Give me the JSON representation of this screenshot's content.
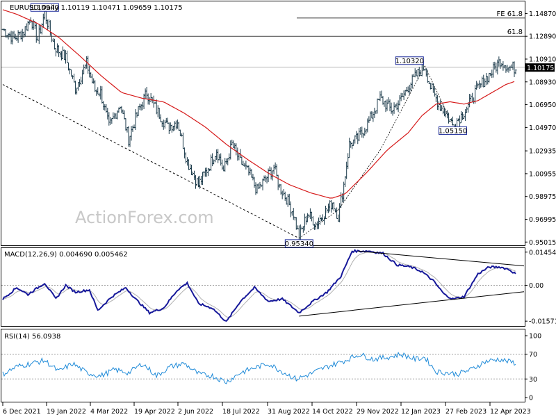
{
  "chart_data": [
    {
      "type": "candlestick",
      "title": "EURUSD,Daily  1.10119 1.10471 1.09659 1.10175",
      "ylim": [
        0.9485,
        1.158
      ],
      "y_ticks": [
        "1.14870",
        "1.12890",
        "1.10910",
        "1.08930",
        "1.06950",
        "1.04970",
        "1.02935",
        "1.00955",
        "0.98975",
        "0.96995",
        "0.95015"
      ],
      "y_tick_values": [
        1.1487,
        1.1289,
        1.1091,
        1.0893,
        1.0695,
        1.0497,
        1.02935,
        1.00955,
        0.98975,
        0.96995,
        0.95015
      ],
      "x_ticks": [
        "6 Dec 2021",
        "19 Jan 2022",
        "4 Mar 2022",
        "19 Apr 2022",
        "2 Jun 2022",
        "18 Jul 2022",
        "31 Aug 2022",
        "14 Oct 2022",
        "29 Nov 2022",
        "12 Jan 2023",
        "27 Feb 2023",
        "12 Apr 2023"
      ],
      "current_price": "1.10175",
      "price_anchors": [
        [
          0,
          1.135
        ],
        [
          8,
          1.127
        ],
        [
          15,
          1.133
        ],
        [
          20,
          1.145
        ],
        [
          25,
          1.126
        ],
        [
          30,
          1.149
        ],
        [
          37,
          1.12
        ],
        [
          45,
          1.11
        ],
        [
          52,
          1.084
        ],
        [
          60,
          1.105
        ],
        [
          66,
          1.082
        ],
        [
          70,
          1.08
        ],
        [
          76,
          1.05
        ],
        [
          84,
          1.07
        ],
        [
          90,
          1.04
        ],
        [
          97,
          1.064
        ],
        [
          103,
          1.08
        ],
        [
          110,
          1.065
        ],
        [
          118,
          1.05
        ],
        [
          125,
          1.055
        ],
        [
          132,
          1.02
        ],
        [
          140,
          1.0
        ],
        [
          147,
          1.015
        ],
        [
          153,
          1.03
        ],
        [
          158,
          1.012
        ],
        [
          164,
          1.035
        ],
        [
          170,
          1.02
        ],
        [
          176,
          1.01
        ],
        [
          182,
          0.995
        ],
        [
          188,
          1.005
        ],
        [
          194,
          1.015
        ],
        [
          198,
          0.998
        ],
        [
          203,
          0.988
        ],
        [
          208,
          0.975
        ],
        [
          212,
          0.954
        ],
        [
          218,
          0.975
        ],
        [
          224,
          0.966
        ],
        [
          230,
          0.975
        ],
        [
          236,
          0.985
        ],
        [
          240,
          0.972
        ],
        [
          244,
          1.0
        ],
        [
          248,
          1.035
        ],
        [
          254,
          1.04
        ],
        [
          262,
          1.055
        ],
        [
          270,
          1.075
        ],
        [
          278,
          1.065
        ],
        [
          284,
          1.072
        ],
        [
          290,
          1.085
        ],
        [
          296,
          1.095
        ],
        [
          302,
          1.103
        ],
        [
          306,
          1.085
        ],
        [
          312,
          1.07
        ],
        [
          318,
          1.06
        ],
        [
          322,
          1.052
        ],
        [
          328,
          1.06
        ],
        [
          333,
          1.068
        ],
        [
          338,
          1.08
        ],
        [
          344,
          1.09
        ],
        [
          350,
          1.098
        ],
        [
          356,
          1.108
        ],
        [
          362,
          1.102
        ],
        [
          367,
          1.101
        ]
      ],
      "moving_average": [
        [
          0,
          1.152
        ],
        [
          10,
          1.148
        ],
        [
          25,
          1.14
        ],
        [
          40,
          1.128
        ],
        [
          55,
          1.112
        ],
        [
          70,
          1.095
        ],
        [
          85,
          1.08
        ],
        [
          100,
          1.075
        ],
        [
          115,
          1.072
        ],
        [
          130,
          1.062
        ],
        [
          145,
          1.05
        ],
        [
          160,
          1.035
        ],
        [
          175,
          1.022
        ],
        [
          190,
          1.01
        ],
        [
          205,
          1.0
        ],
        [
          220,
          0.993
        ],
        [
          235,
          0.988
        ],
        [
          245,
          0.992
        ],
        [
          260,
          1.01
        ],
        [
          275,
          1.03
        ],
        [
          290,
          1.045
        ],
        [
          300,
          1.06
        ],
        [
          310,
          1.07
        ],
        [
          320,
          1.072
        ],
        [
          330,
          1.07
        ],
        [
          340,
          1.073
        ],
        [
          350,
          1.08
        ],
        [
          360,
          1.087
        ],
        [
          367,
          1.09
        ]
      ],
      "trend_line": [
        [
          0,
          1.087
        ],
        [
          212,
          0.9534
        ]
      ],
      "swing_line": [
        [
          212,
          0.9534
        ],
        [
          240,
          0.978
        ],
        [
          270,
          1.03
        ],
        [
          302,
          1.1032
        ],
        [
          322,
          1.0515
        ]
      ],
      "horizontal_levels": [
        {
          "label": "61.8",
          "value": 1.1289
        },
        {
          "label": "",
          "value": 1.102
        },
        {
          "label": "FE 61.8",
          "value": 1.1448
        }
      ],
      "annotations": [
        {
          "text": "1.14940",
          "x": 30,
          "y": 1.1494,
          "anchor": "top"
        },
        {
          "text": "0.95340",
          "x": 212,
          "y": 0.9534,
          "anchor": "bottom"
        },
        {
          "text": "1.10320",
          "x": 302,
          "y": 1.1032,
          "anchor": "top"
        },
        {
          "text": "1.05150",
          "x": 322,
          "y": 1.0515,
          "anchor": "bottom"
        }
      ],
      "watermark": "ActionForex.com"
    },
    {
      "type": "line",
      "title": "MACD(12,26,9) 0.004690 0.005462",
      "ylim": [
        -0.0175,
        0.016
      ],
      "y_ticks": [
        "0.014549",
        "0.00",
        "-0.015712"
      ],
      "y_tick_values": [
        0.014549,
        0.0,
        -0.015712
      ],
      "macd_anchors": [
        [
          0,
          -0.006
        ],
        [
          10,
          -0.001
        ],
        [
          18,
          -0.004
        ],
        [
          30,
          0.001
        ],
        [
          38,
          -0.006
        ],
        [
          45,
          0.0
        ],
        [
          52,
          -0.003
        ],
        [
          62,
          -0.002
        ],
        [
          68,
          -0.011
        ],
        [
          78,
          -0.005
        ],
        [
          88,
          -0.001
        ],
        [
          95,
          -0.006
        ],
        [
          105,
          -0.012
        ],
        [
          115,
          -0.01
        ],
        [
          125,
          -0.002
        ],
        [
          132,
          0.001
        ],
        [
          140,
          -0.008
        ],
        [
          150,
          -0.01
        ],
        [
          160,
          -0.016
        ],
        [
          170,
          -0.007
        ],
        [
          180,
          -0.001
        ],
        [
          190,
          -0.007
        ],
        [
          200,
          -0.006
        ],
        [
          212,
          -0.012
        ],
        [
          222,
          -0.007
        ],
        [
          232,
          -0.003
        ],
        [
          242,
          0.004
        ],
        [
          250,
          0.015
        ],
        [
          262,
          0.015
        ],
        [
          272,
          0.014
        ],
        [
          282,
          0.009
        ],
        [
          292,
          0.008
        ],
        [
          300,
          0.006
        ],
        [
          308,
          0.002
        ],
        [
          316,
          -0.004
        ],
        [
          322,
          -0.006
        ],
        [
          330,
          -0.005
        ],
        [
          340,
          0.005
        ],
        [
          348,
          0.008
        ],
        [
          356,
          0.008
        ],
        [
          362,
          0.007
        ],
        [
          367,
          0.005
        ]
      ],
      "trend_line_upper": [
        [
          254,
          0.015
        ],
        [
          395,
          0.0085
        ]
      ],
      "trend_line_lower": [
        [
          212,
          -0.0135
        ],
        [
          395,
          -0.0028
        ]
      ]
    },
    {
      "type": "line",
      "title": "RSI(14) 56.0938",
      "ylim": [
        0,
        100
      ],
      "y_ticks": [
        "100",
        "70",
        "30",
        "0"
      ],
      "y_tick_values": [
        100,
        70,
        30,
        0
      ],
      "rsi_anchors": [
        [
          0,
          38
        ],
        [
          10,
          50
        ],
        [
          20,
          55
        ],
        [
          30,
          60
        ],
        [
          40,
          42
        ],
        [
          50,
          55
        ],
        [
          60,
          40
        ],
        [
          70,
          35
        ],
        [
          80,
          45
        ],
        [
          90,
          40
        ],
        [
          100,
          55
        ],
        [
          110,
          35
        ],
        [
          120,
          50
        ],
        [
          130,
          55
        ],
        [
          140,
          38
        ],
        [
          150,
          35
        ],
        [
          160,
          25
        ],
        [
          170,
          40
        ],
        [
          180,
          48
        ],
        [
          190,
          55
        ],
        [
          200,
          42
        ],
        [
          210,
          30
        ],
        [
          220,
          38
        ],
        [
          232,
          50
        ],
        [
          245,
          60
        ],
        [
          255,
          70
        ],
        [
          265,
          62
        ],
        [
          275,
          65
        ],
        [
          285,
          70
        ],
        [
          295,
          62
        ],
        [
          302,
          65
        ],
        [
          310,
          42
        ],
        [
          318,
          40
        ],
        [
          325,
          38
        ],
        [
          335,
          45
        ],
        [
          345,
          58
        ],
        [
          355,
          62
        ],
        [
          362,
          58
        ],
        [
          367,
          56
        ]
      ]
    }
  ]
}
